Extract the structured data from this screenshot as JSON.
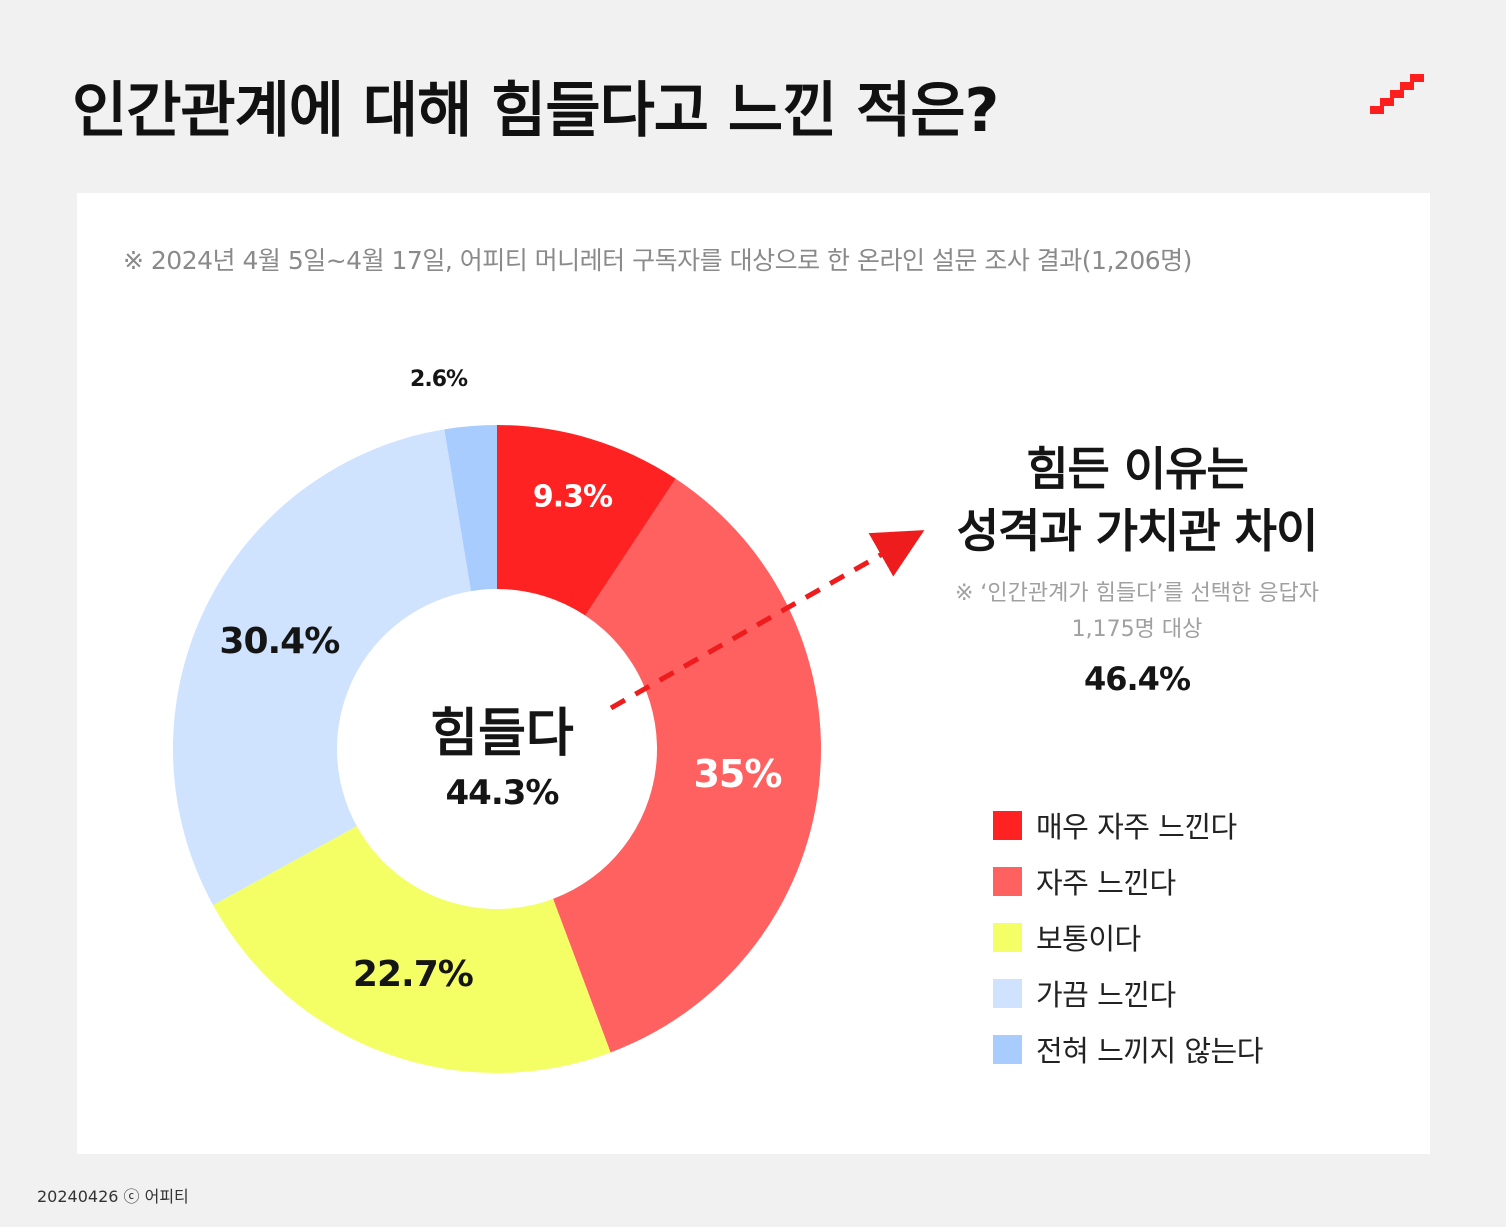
{
  "title": "인간관계에 대해 힘들다고 느낀 적은?",
  "note": "※ 2024년 4월 5일~4월 17일, 어피티 머니레터 구독자를 대상으로 한 온라인 설문 조사 결과(1,206명)",
  "center": {
    "title": "힘들다",
    "value": "44.3%"
  },
  "callout": {
    "line1": "힘든 이유는",
    "line2": "성격과 가치관 차이",
    "note1": "※ ‘인간관계가 힘들다’를 선택한 응답자",
    "note2": "1,175명 대상",
    "value": "46.4%"
  },
  "footer": "20240426 ⓒ 어피티",
  "chart_data": {
    "type": "pie",
    "donut": true,
    "title": "인간관계에 대해 힘들다고 느낀 적은?",
    "categories": [
      "매우 자주 느낀다",
      "자주 느낀다",
      "보통이다",
      "가끔 느낀다",
      "전혀 느끼지 않는다"
    ],
    "values": [
      9.3,
      35,
      22.7,
      30.4,
      2.6
    ],
    "labels": [
      "9.3%",
      "35%",
      "22.7%",
      "30.4%",
      "2.6%"
    ],
    "colors": [
      "#ff2222",
      "#ff6060",
      "#f4ff66",
      "#cfe3ff",
      "#a8ccfe"
    ],
    "label_colors": [
      "#ffffff",
      "#ffffff",
      "#151515",
      "#151515",
      "#151515"
    ],
    "legend_position": "right"
  }
}
